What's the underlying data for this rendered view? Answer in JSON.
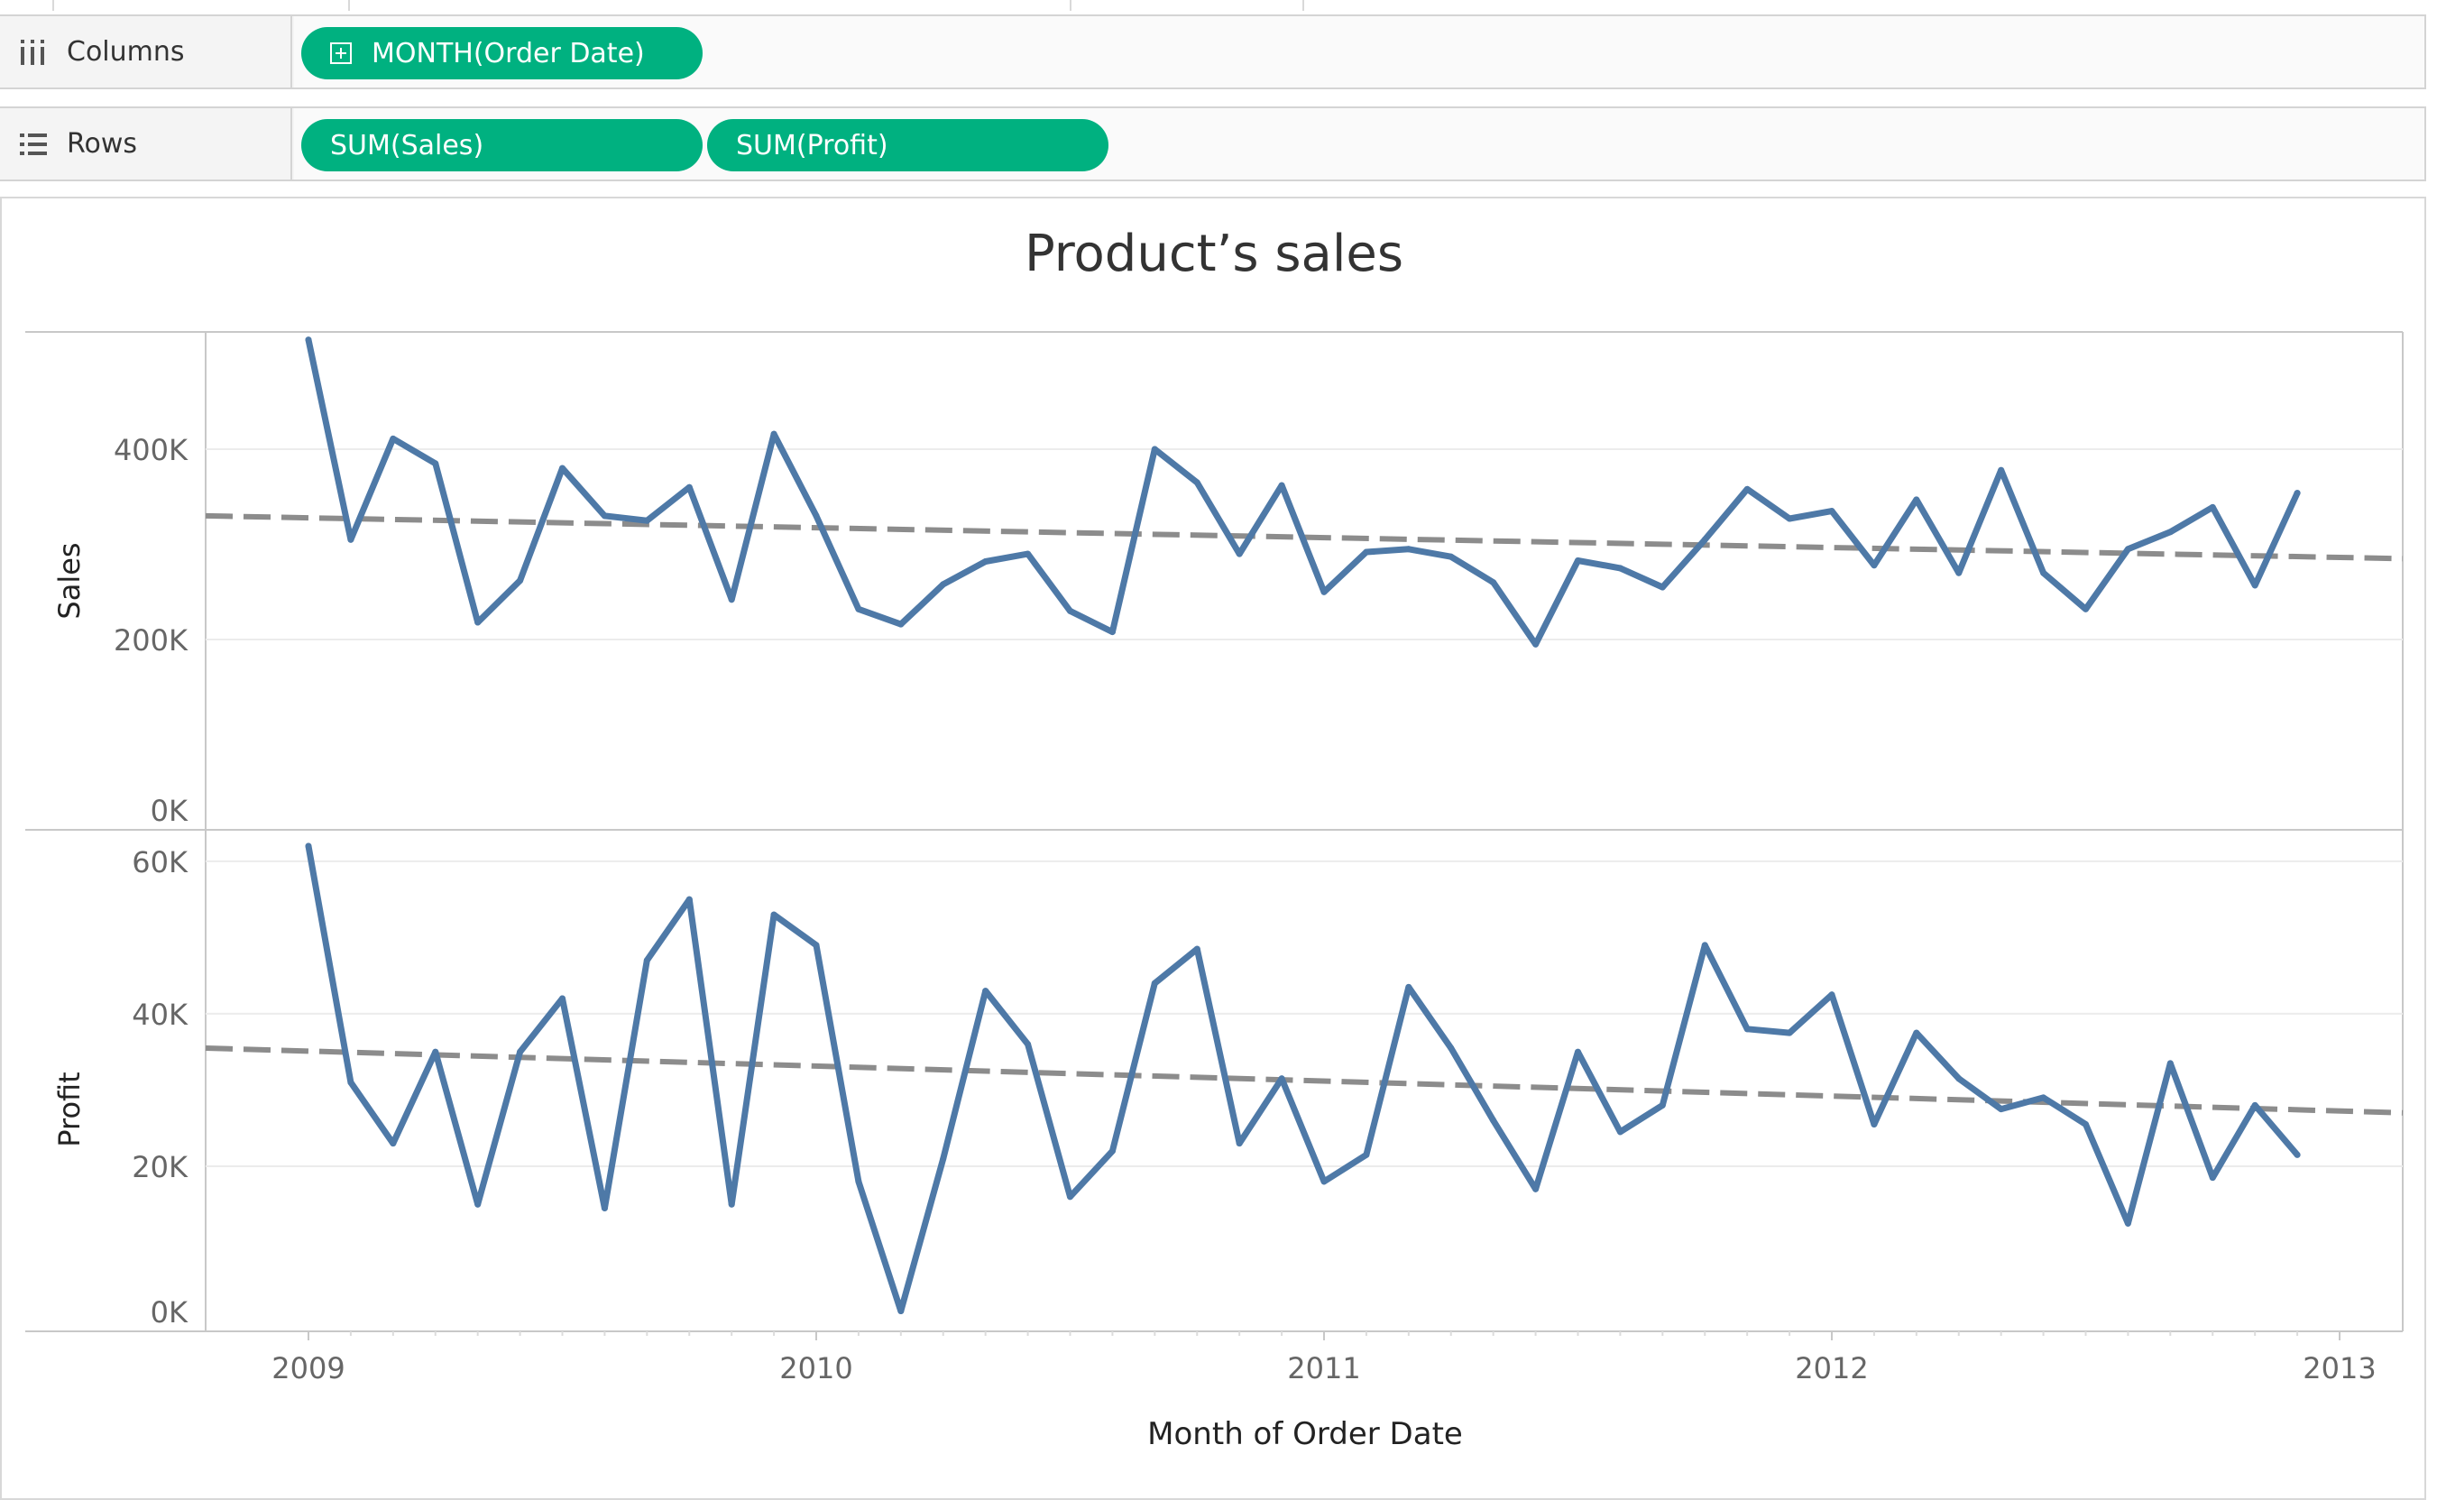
{
  "shelves": {
    "columns": {
      "label": "Columns",
      "icon": "columns-icon",
      "pills": [
        {
          "label": "MONTH(Order Date)",
          "icon": "expand-plus-icon"
        }
      ]
    },
    "rows": {
      "label": "Rows",
      "icon": "rows-icon",
      "pills": [
        {
          "label": "SUM(Sales)"
        },
        {
          "label": "SUM(Profit)"
        }
      ]
    }
  },
  "colors": {
    "pill": "#00b180",
    "line": "#4e79a7",
    "trend": "#8c8c8c"
  },
  "chart_data": {
    "type": "line",
    "title": "Product’s sales",
    "xlabel": "Month of Order Date",
    "x_ticks": [
      "2009",
      "2010",
      "2011",
      "2012",
      "2013"
    ],
    "x": [
      "2009-01",
      "2009-02",
      "2009-03",
      "2009-04",
      "2009-05",
      "2009-06",
      "2009-07",
      "2009-08",
      "2009-09",
      "2009-10",
      "2009-11",
      "2009-12",
      "2010-01",
      "2010-02",
      "2010-03",
      "2010-04",
      "2010-05",
      "2010-06",
      "2010-07",
      "2010-08",
      "2010-09",
      "2010-10",
      "2010-11",
      "2010-12",
      "2011-01",
      "2011-02",
      "2011-03",
      "2011-04",
      "2011-05",
      "2011-06",
      "2011-07",
      "2011-08",
      "2011-09",
      "2011-10",
      "2011-11",
      "2011-12",
      "2012-01",
      "2012-02",
      "2012-03",
      "2012-04",
      "2012-05",
      "2012-06",
      "2012-07",
      "2012-08",
      "2012-09",
      "2012-10",
      "2012-11",
      "2012-12"
    ],
    "panels": [
      {
        "name": "Sales",
        "ylabel": "Sales",
        "ylim": [
          0,
          510000
        ],
        "y_ticks": [
          "0K",
          "200K",
          "400K"
        ],
        "values": [
          515000,
          305000,
          411000,
          385000,
          218000,
          262000,
          380000,
          330000,
          325000,
          360000,
          242000,
          416000,
          330000,
          232000,
          216000,
          258000,
          282000,
          290000,
          230000,
          208000,
          400000,
          365000,
          290000,
          362000,
          250000,
          292000,
          295000,
          287000,
          260000,
          195000,
          283000,
          275000,
          255000,
          305000,
          358000,
          327000,
          335000,
          278000,
          347000,
          270000,
          378000,
          270000,
          232000,
          295000,
          313000,
          339000,
          257000,
          354000
        ],
        "trend": {
          "start": 330000,
          "end": 285000
        }
      },
      {
        "name": "Profit",
        "ylabel": "Profit",
        "ylim": [
          0,
          62000
        ],
        "y_ticks": [
          "0K",
          "20K",
          "40K",
          "60K"
        ],
        "values": [
          62000,
          31000,
          23000,
          35000,
          15000,
          35000,
          42000,
          14500,
          47000,
          55000,
          15000,
          53000,
          49000,
          18000,
          1000,
          21000,
          43000,
          36000,
          16000,
          22000,
          44000,
          48500,
          23000,
          31500,
          18000,
          21500,
          43500,
          35500,
          26000,
          17000,
          35000,
          24500,
          28000,
          49000,
          38000,
          37500,
          42500,
          25500,
          37500,
          31500,
          27500,
          29000,
          25500,
          12500,
          33500,
          18500,
          28000,
          21500
        ],
        "trend": {
          "start": 35500,
          "end": 27000
        }
      }
    ]
  }
}
